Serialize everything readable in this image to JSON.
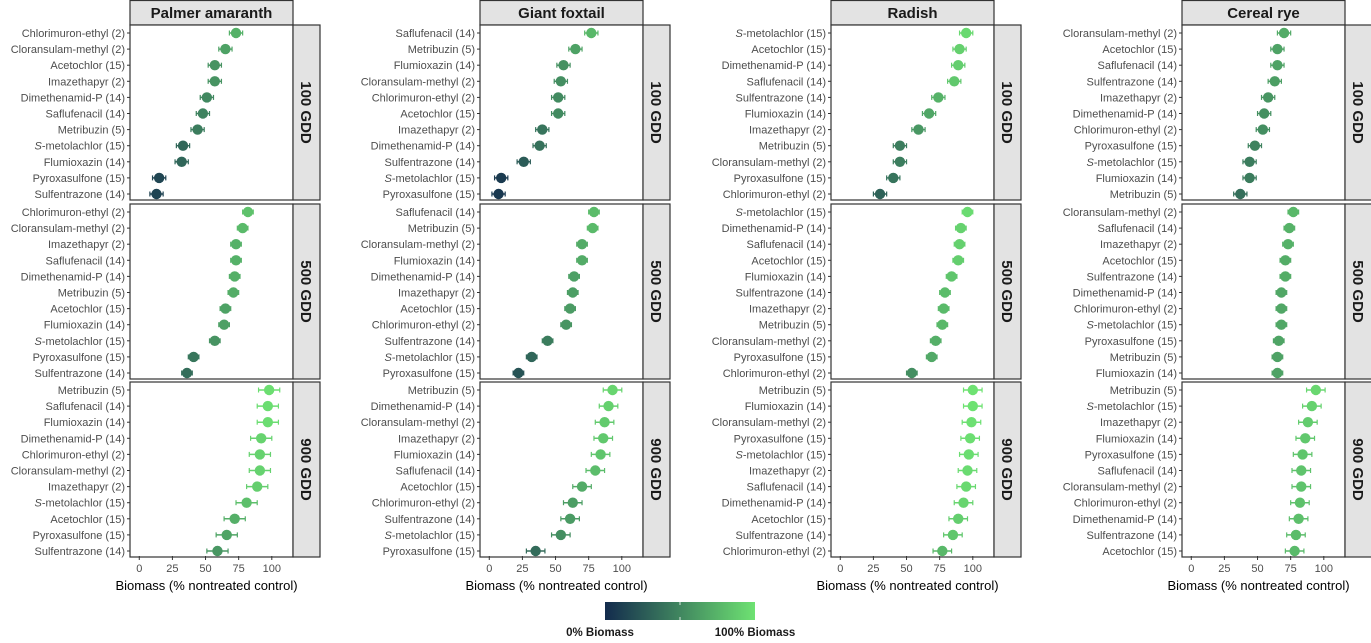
{
  "chart_data": {
    "type": "scatter",
    "subtype": "faceted dot plot with error bars",
    "xlabel": "Biomass (% nontreated control)",
    "x_ticks": [
      0,
      25,
      50,
      75,
      100
    ],
    "xlim": [
      -7,
      116
    ],
    "grid": false,
    "color_scale": {
      "low_label": "0% Biomass",
      "high_label": "100% Biomass",
      "low_color": "#132b4d",
      "high_color": "#6ee272",
      "placement": "bottom-center"
    },
    "columns": [
      "Palmer amaranth",
      "Giant foxtail",
      "Radish",
      "Cereal rye"
    ],
    "rows": [
      "100 GDD",
      "500 GDD",
      "900 GDD"
    ],
    "panels": [
      {
        "species": "Palmer amaranth",
        "timing": "100 GDD",
        "error": 5,
        "points": [
          {
            "herbicide": "Chlorimuron-ethyl",
            "group": "(2)",
            "value": 73
          },
          {
            "herbicide": "Cloransulam-methyl",
            "group": "(2)",
            "value": 65
          },
          {
            "herbicide": "Acetochlor",
            "group": "(15)",
            "value": 57
          },
          {
            "herbicide": "Imazethapyr",
            "group": "(2)",
            "value": 57
          },
          {
            "herbicide": "Dimethenamid-P",
            "group": "(14)",
            "value": 51
          },
          {
            "herbicide": "Saflufenacil",
            "group": "(14)",
            "value": 48
          },
          {
            "herbicide": "Metribuzin",
            "group": "(5)",
            "value": 44
          },
          {
            "herbicide": "S-metolachlor",
            "group": "(15)",
            "value": 33
          },
          {
            "herbicide": "Flumioxazin",
            "group": "(14)",
            "value": 32
          },
          {
            "herbicide": "Pyroxasulfone",
            "group": "(15)",
            "value": 15
          },
          {
            "herbicide": "Sulfentrazone",
            "group": "(14)",
            "value": 13
          }
        ]
      },
      {
        "species": "Palmer amaranth",
        "timing": "500 GDD",
        "error": 4,
        "points": [
          {
            "herbicide": "Chlorimuron-ethyl",
            "group": "(2)",
            "value": 82
          },
          {
            "herbicide": "Cloransulam-methyl",
            "group": "(2)",
            "value": 78
          },
          {
            "herbicide": "Imazethapyr",
            "group": "(2)",
            "value": 73
          },
          {
            "herbicide": "Saflufenacil",
            "group": "(14)",
            "value": 73
          },
          {
            "herbicide": "Dimethenamid-P",
            "group": "(14)",
            "value": 72
          },
          {
            "herbicide": "Metribuzin",
            "group": "(5)",
            "value": 71
          },
          {
            "herbicide": "Acetochlor",
            "group": "(15)",
            "value": 65
          },
          {
            "herbicide": "Flumioxazin",
            "group": "(14)",
            "value": 64
          },
          {
            "herbicide": "S-metolachlor",
            "group": "(15)",
            "value": 57
          },
          {
            "herbicide": "Pyroxasulfone",
            "group": "(15)",
            "value": 41
          },
          {
            "herbicide": "Sulfentrazone",
            "group": "(14)",
            "value": 36
          }
        ]
      },
      {
        "species": "Palmer amaranth",
        "timing": "900 GDD",
        "error": 8,
        "points": [
          {
            "herbicide": "Metribuzin",
            "group": "(5)",
            "value": 98
          },
          {
            "herbicide": "Saflufenacil",
            "group": "(14)",
            "value": 97
          },
          {
            "herbicide": "Flumioxazin",
            "group": "(14)",
            "value": 97
          },
          {
            "herbicide": "Dimethenamid-P",
            "group": "(14)",
            "value": 92
          },
          {
            "herbicide": "Chlorimuron-ethyl",
            "group": "(2)",
            "value": 91
          },
          {
            "herbicide": "Cloransulam-methyl",
            "group": "(2)",
            "value": 91
          },
          {
            "herbicide": "Imazethapyr",
            "group": "(2)",
            "value": 89
          },
          {
            "herbicide": "S-metolachlor",
            "group": "(15)",
            "value": 81
          },
          {
            "herbicide": "Acetochlor",
            "group": "(15)",
            "value": 72
          },
          {
            "herbicide": "Pyroxasulfone",
            "group": "(15)",
            "value": 66
          },
          {
            "herbicide": "Sulfentrazone",
            "group": "(14)",
            "value": 59
          }
        ]
      },
      {
        "species": "Giant foxtail",
        "timing": "100 GDD",
        "error": 5,
        "points": [
          {
            "herbicide": "Saflufenacil",
            "group": "(14)",
            "value": 77
          },
          {
            "herbicide": "Metribuzin",
            "group": "(5)",
            "value": 65
          },
          {
            "herbicide": "Flumioxazin",
            "group": "(14)",
            "value": 56
          },
          {
            "herbicide": "Cloransulam-methyl",
            "group": "(2)",
            "value": 54
          },
          {
            "herbicide": "Chlorimuron-ethyl",
            "group": "(2)",
            "value": 52
          },
          {
            "herbicide": "Acetochlor",
            "group": "(15)",
            "value": 52
          },
          {
            "herbicide": "Imazethapyr",
            "group": "(2)",
            "value": 40
          },
          {
            "herbicide": "Dimethenamid-P",
            "group": "(14)",
            "value": 38
          },
          {
            "herbicide": "Sulfentrazone",
            "group": "(14)",
            "value": 26
          },
          {
            "herbicide": "S-metolachlor",
            "group": "(15)",
            "value": 9
          },
          {
            "herbicide": "Pyroxasulfone",
            "group": "(15)",
            "value": 7
          }
        ]
      },
      {
        "species": "Giant foxtail",
        "timing": "500 GDD",
        "error": 4,
        "points": [
          {
            "herbicide": "Saflufenacil",
            "group": "(14)",
            "value": 79
          },
          {
            "herbicide": "Metribuzin",
            "group": "(5)",
            "value": 78
          },
          {
            "herbicide": "Cloransulam-methyl",
            "group": "(2)",
            "value": 70
          },
          {
            "herbicide": "Flumioxazin",
            "group": "(14)",
            "value": 70
          },
          {
            "herbicide": "Dimethenamid-P",
            "group": "(14)",
            "value": 64
          },
          {
            "herbicide": "Imazethapyr",
            "group": "(2)",
            "value": 63
          },
          {
            "herbicide": "Acetochlor",
            "group": "(15)",
            "value": 61
          },
          {
            "herbicide": "Chlorimuron-ethyl",
            "group": "(2)",
            "value": 58
          },
          {
            "herbicide": "Sulfentrazone",
            "group": "(14)",
            "value": 44
          },
          {
            "herbicide": "S-metolachlor",
            "group": "(15)",
            "value": 32
          },
          {
            "herbicide": "Pyroxasulfone",
            "group": "(15)",
            "value": 22
          }
        ]
      },
      {
        "species": "Giant foxtail",
        "timing": "900 GDD",
        "error": 7,
        "points": [
          {
            "herbicide": "Metribuzin",
            "group": "(5)",
            "value": 93
          },
          {
            "herbicide": "Dimethenamid-P",
            "group": "(14)",
            "value": 90
          },
          {
            "herbicide": "Cloransulam-methyl",
            "group": "(2)",
            "value": 87
          },
          {
            "herbicide": "Imazethapyr",
            "group": "(2)",
            "value": 86
          },
          {
            "herbicide": "Flumioxazin",
            "group": "(14)",
            "value": 84
          },
          {
            "herbicide": "Saflufenacil",
            "group": "(14)",
            "value": 80
          },
          {
            "herbicide": "Acetochlor",
            "group": "(15)",
            "value": 70
          },
          {
            "herbicide": "Chlorimuron-ethyl",
            "group": "(2)",
            "value": 63
          },
          {
            "herbicide": "Sulfentrazone",
            "group": "(14)",
            "value": 61
          },
          {
            "herbicide": "S-metolachlor",
            "group": "(15)",
            "value": 54
          },
          {
            "herbicide": "Pyroxasulfone",
            "group": "(15)",
            "value": 35
          }
        ]
      },
      {
        "species": "Radish",
        "timing": "100 GDD",
        "error": 5,
        "points": [
          {
            "herbicide": "S-metolachlor",
            "group": "(15)",
            "value": 95
          },
          {
            "herbicide": "Acetochlor",
            "group": "(15)",
            "value": 90
          },
          {
            "herbicide": "Dimethenamid-P",
            "group": "(14)",
            "value": 89
          },
          {
            "herbicide": "Saflufenacil",
            "group": "(14)",
            "value": 86
          },
          {
            "herbicide": "Sulfentrazone",
            "group": "(14)",
            "value": 74
          },
          {
            "herbicide": "Flumioxazin",
            "group": "(14)",
            "value": 67
          },
          {
            "herbicide": "Imazethapyr",
            "group": "(2)",
            "value": 59
          },
          {
            "herbicide": "Metribuzin",
            "group": "(5)",
            "value": 45
          },
          {
            "herbicide": "Cloransulam-methyl",
            "group": "(2)",
            "value": 45
          },
          {
            "herbicide": "Pyroxasulfone",
            "group": "(15)",
            "value": 40
          },
          {
            "herbicide": "Chlorimuron-ethyl",
            "group": "(2)",
            "value": 30
          }
        ]
      },
      {
        "species": "Radish",
        "timing": "500 GDD",
        "error": 4,
        "points": [
          {
            "herbicide": "S-metolachlor",
            "group": "(15)",
            "value": 96
          },
          {
            "herbicide": "Dimethenamid-P",
            "group": "(14)",
            "value": 91
          },
          {
            "herbicide": "Saflufenacil",
            "group": "(14)",
            "value": 90
          },
          {
            "herbicide": "Acetochlor",
            "group": "(15)",
            "value": 89
          },
          {
            "herbicide": "Flumioxazin",
            "group": "(14)",
            "value": 84
          },
          {
            "herbicide": "Sulfentrazone",
            "group": "(14)",
            "value": 79
          },
          {
            "herbicide": "Imazethapyr",
            "group": "(2)",
            "value": 78
          },
          {
            "herbicide": "Metribuzin",
            "group": "(5)",
            "value": 77
          },
          {
            "herbicide": "Cloransulam-methyl",
            "group": "(2)",
            "value": 72
          },
          {
            "herbicide": "Pyroxasulfone",
            "group": "(15)",
            "value": 69
          },
          {
            "herbicide": "Chlorimuron-ethyl",
            "group": "(2)",
            "value": 54
          }
        ]
      },
      {
        "species": "Radish",
        "timing": "900 GDD",
        "error": 7,
        "points": [
          {
            "herbicide": "Metribuzin",
            "group": "(5)",
            "value": 100
          },
          {
            "herbicide": "Flumioxazin",
            "group": "(14)",
            "value": 100
          },
          {
            "herbicide": "Cloransulam-methyl",
            "group": "(2)",
            "value": 99
          },
          {
            "herbicide": "Pyroxasulfone",
            "group": "(15)",
            "value": 98
          },
          {
            "herbicide": "S-metolachlor",
            "group": "(15)",
            "value": 97
          },
          {
            "herbicide": "Imazethapyr",
            "group": "(2)",
            "value": 96
          },
          {
            "herbicide": "Saflufenacil",
            "group": "(14)",
            "value": 95
          },
          {
            "herbicide": "Dimethenamid-P",
            "group": "(14)",
            "value": 93
          },
          {
            "herbicide": "Acetochlor",
            "group": "(15)",
            "value": 89
          },
          {
            "herbicide": "Sulfentrazone",
            "group": "(14)",
            "value": 85
          },
          {
            "herbicide": "Chlorimuron-ethyl",
            "group": "(2)",
            "value": 77
          }
        ]
      },
      {
        "species": "Cereal rye",
        "timing": "100 GDD",
        "error": 5,
        "points": [
          {
            "herbicide": "Cloransulam-methyl",
            "group": "(2)",
            "value": 70
          },
          {
            "herbicide": "Acetochlor",
            "group": "(15)",
            "value": 65
          },
          {
            "herbicide": "Saflufenacil",
            "group": "(14)",
            "value": 65
          },
          {
            "herbicide": "Sulfentrazone",
            "group": "(14)",
            "value": 63
          },
          {
            "herbicide": "Imazethapyr",
            "group": "(2)",
            "value": 58
          },
          {
            "herbicide": "Dimethenamid-P",
            "group": "(14)",
            "value": 55
          },
          {
            "herbicide": "Chlorimuron-ethyl",
            "group": "(2)",
            "value": 54
          },
          {
            "herbicide": "Pyroxasulfone",
            "group": "(15)",
            "value": 48
          },
          {
            "herbicide": "S-metolachlor",
            "group": "(15)",
            "value": 44
          },
          {
            "herbicide": "Flumioxazin",
            "group": "(14)",
            "value": 44
          },
          {
            "herbicide": "Metribuzin",
            "group": "(5)",
            "value": 37
          }
        ]
      },
      {
        "species": "Cereal rye",
        "timing": "500 GDD",
        "error": 4,
        "points": [
          {
            "herbicide": "Cloransulam-methyl",
            "group": "(2)",
            "value": 77
          },
          {
            "herbicide": "Saflufenacil",
            "group": "(14)",
            "value": 74
          },
          {
            "herbicide": "Imazethapyr",
            "group": "(2)",
            "value": 73
          },
          {
            "herbicide": "Acetochlor",
            "group": "(15)",
            "value": 71
          },
          {
            "herbicide": "Sulfentrazone",
            "group": "(14)",
            "value": 71
          },
          {
            "herbicide": "Dimethenamid-P",
            "group": "(14)",
            "value": 68
          },
          {
            "herbicide": "Chlorimuron-ethyl",
            "group": "(2)",
            "value": 68
          },
          {
            "herbicide": "S-metolachlor",
            "group": "(15)",
            "value": 68
          },
          {
            "herbicide": "Pyroxasulfone",
            "group": "(15)",
            "value": 66
          },
          {
            "herbicide": "Metribuzin",
            "group": "(5)",
            "value": 65
          },
          {
            "herbicide": "Flumioxazin",
            "group": "(14)",
            "value": 65
          }
        ]
      },
      {
        "species": "Cereal rye",
        "timing": "900 GDD",
        "error": 7,
        "points": [
          {
            "herbicide": "Metribuzin",
            "group": "(5)",
            "value": 94
          },
          {
            "herbicide": "S-metolachlor",
            "group": "(15)",
            "value": 91
          },
          {
            "herbicide": "Imazethapyr",
            "group": "(2)",
            "value": 88
          },
          {
            "herbicide": "Flumioxazin",
            "group": "(14)",
            "value": 86
          },
          {
            "herbicide": "Pyroxasulfone",
            "group": "(15)",
            "value": 84
          },
          {
            "herbicide": "Saflufenacil",
            "group": "(14)",
            "value": 83
          },
          {
            "herbicide": "Cloransulam-methyl",
            "group": "(2)",
            "value": 83
          },
          {
            "herbicide": "Chlorimuron-ethyl",
            "group": "(2)",
            "value": 82
          },
          {
            "herbicide": "Dimethenamid-P",
            "group": "(14)",
            "value": 81
          },
          {
            "herbicide": "Sulfentrazone",
            "group": "(14)",
            "value": 79
          },
          {
            "herbicide": "Acetochlor",
            "group": "(15)",
            "value": 78
          }
        ]
      }
    ]
  }
}
